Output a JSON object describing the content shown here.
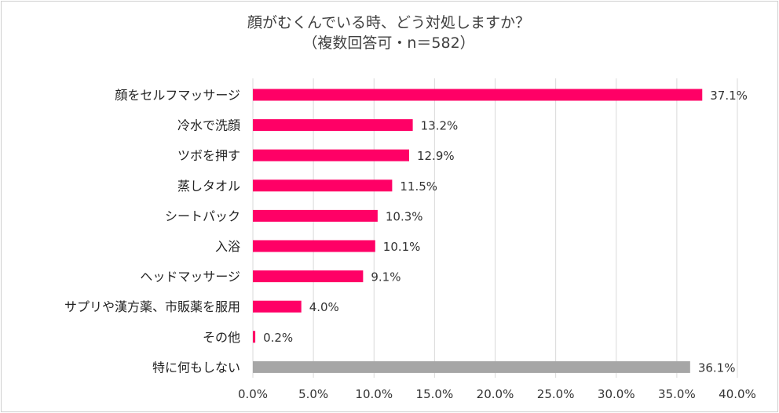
{
  "chart_data": {
    "type": "bar",
    "orientation": "horizontal",
    "title": "顔がむくんでいる時、どう対処しますか？",
    "subtitle": "（複数回答可・n＝582）",
    "categories": [
      "顔をセルフマッサージ",
      "冷水で洗顔",
      "ツボを押す",
      "蒸しタオル",
      "シートパック",
      "入浴",
      "ヘッドマッサージ",
      "サプリや漢方薬、市販薬を服用",
      "その他",
      "特に何もしない"
    ],
    "values": [
      37.1,
      13.2,
      12.9,
      11.5,
      10.3,
      10.1,
      9.1,
      4.0,
      0.2,
      36.1
    ],
    "value_labels": [
      "37.1%",
      "13.2%",
      "12.9%",
      "11.5%",
      "10.3%",
      "10.1%",
      "9.1%",
      "4.0%",
      "0.2%",
      "36.1%"
    ],
    "bar_colors": [
      "#ff0066",
      "#ff0066",
      "#ff0066",
      "#ff0066",
      "#ff0066",
      "#ff0066",
      "#ff0066",
      "#ff0066",
      "#ff0066",
      "#a6a6a6"
    ],
    "xlim": [
      0,
      40
    ],
    "x_ticks": [
      "0.0%",
      "5.0%",
      "10.0%",
      "15.0%",
      "20.0%",
      "25.0%",
      "30.0%",
      "35.0%",
      "40.0%"
    ],
    "x_tick_values": [
      0,
      5,
      10,
      15,
      20,
      25,
      30,
      35,
      40
    ],
    "grid": true,
    "legend": "none"
  }
}
